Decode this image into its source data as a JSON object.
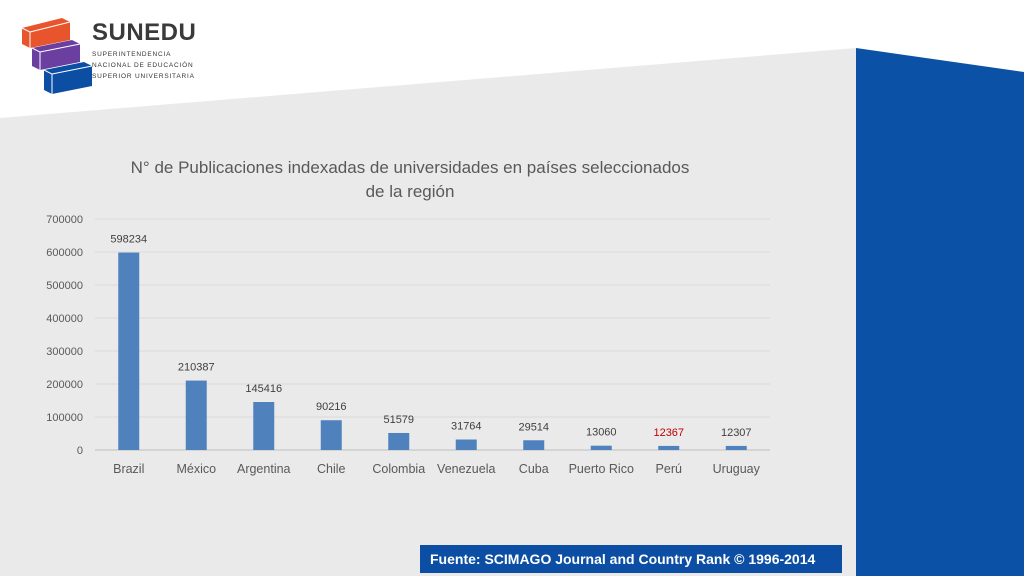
{
  "brand": {
    "name": "SUNEDU",
    "subtitle_lines": [
      "SUPERINTENDENCIA",
      "NACIONAL DE EDUCACIÓN",
      "SUPERIOR UNIVERSITARIA"
    ],
    "colors": {
      "orange": "#e8542c",
      "purple": "#6b3fa0",
      "blue": "#0b4ea3"
    }
  },
  "chart_data": {
    "type": "bar",
    "title_lines": [
      "N° de Publicaciones indexadas de universidades en países seleccionados",
      "de la región"
    ],
    "categories": [
      "Brazil",
      "México",
      "Argentina",
      "Chile",
      "Colombia",
      "Venezuela",
      "Cuba",
      "Puerto Rico",
      "Perú",
      "Uruguay"
    ],
    "values": [
      598234,
      210387,
      145416,
      90216,
      51579,
      31764,
      29514,
      13060,
      12367,
      12307
    ],
    "data_labels": [
      "598234",
      "210387",
      "145416",
      "90216",
      "51579",
      "31764",
      "29514",
      "13060",
      "12367",
      "12307"
    ],
    "highlight_category": "Perú",
    "highlight_label_color": "#c00000",
    "bar_color": "#4f81bd",
    "ylim": [
      0,
      700000
    ],
    "yticks": [
      0,
      100000,
      200000,
      300000,
      400000,
      500000,
      600000,
      700000
    ],
    "ytick_labels": [
      "0",
      "100000",
      "200000",
      "300000",
      "400000",
      "500000",
      "600000",
      "700000"
    ],
    "xlabel": "",
    "ylabel": "",
    "grid": true,
    "legend": "none"
  },
  "footer": {
    "source_text": "Fuente: SCIMAGO Journal and Country Rank © 1996-2014"
  }
}
